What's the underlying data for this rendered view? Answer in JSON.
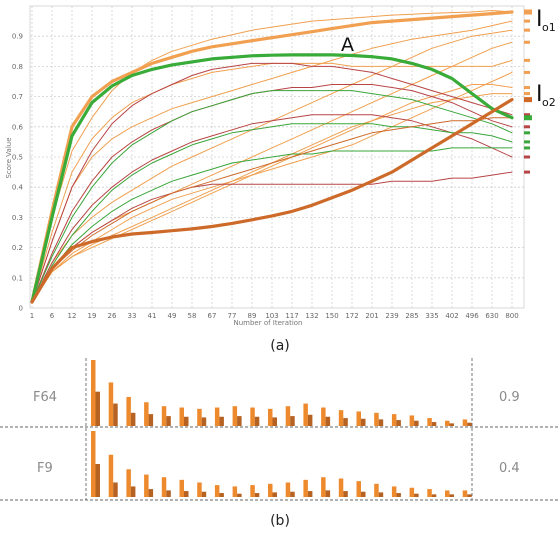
{
  "chart_data": [
    {
      "type": "line",
      "ylabel": "Score Value",
      "xlabel": "Number of Iteration",
      "ylim": [
        0,
        1.0
      ],
      "yticks": [
        "0",
        "0.1",
        "0.2",
        "0.3",
        "0.4",
        "0.5",
        "0.6",
        "0.7",
        "0.8",
        "0.9"
      ],
      "categories": [
        "1",
        "6",
        "12",
        "19",
        "26",
        "33",
        "41",
        "49",
        "58",
        "67",
        "77",
        "89",
        "103",
        "117",
        "132",
        "150",
        "172",
        "201",
        "239",
        "285",
        "335",
        "402",
        "496",
        "630",
        "800"
      ],
      "grid": true,
      "colors": {
        "orange": "#f0a050",
        "dark_orange": "#cd6a2a",
        "green": "#3aa53a",
        "red": "#b84545",
        "bold_orange": "#f0a050",
        "bold_green": "#38ab38"
      },
      "annotations": {
        "A": "A",
        "io1_main": "I",
        "io1_sub": "o1",
        "io2_main": "I",
        "io2_sub": "o2",
        "panel_caption": "(a)"
      },
      "series": [
        {
          "color": "orange",
          "width": 1,
          "values": [
            0.02,
            0.3,
            0.52,
            0.63,
            0.72,
            0.78,
            0.82,
            0.85,
            0.87,
            0.89,
            0.905,
            0.92,
            0.93,
            0.94,
            0.95,
            0.955,
            0.96,
            0.965,
            0.97,
            0.973,
            0.976,
            0.978,
            0.98,
            0.985,
            0.98
          ]
        },
        {
          "color": "orange",
          "width": 1,
          "values": [
            0.02,
            0.22,
            0.4,
            0.5,
            0.56,
            0.6,
            0.63,
            0.66,
            0.68,
            0.7,
            0.72,
            0.74,
            0.76,
            0.78,
            0.8,
            0.82,
            0.84,
            0.86,
            0.875,
            0.89,
            0.9,
            0.91,
            0.92,
            0.935,
            0.95
          ]
        },
        {
          "color": "orange",
          "width": 1,
          "values": [
            0.02,
            0.15,
            0.24,
            0.3,
            0.35,
            0.39,
            0.43,
            0.47,
            0.5,
            0.53,
            0.56,
            0.59,
            0.62,
            0.65,
            0.68,
            0.71,
            0.74,
            0.77,
            0.8,
            0.83,
            0.86,
            0.88,
            0.9,
            0.91,
            0.92
          ]
        },
        {
          "color": "orange",
          "width": 1,
          "values": [
            0.02,
            0.13,
            0.2,
            0.25,
            0.29,
            0.32,
            0.35,
            0.38,
            0.41,
            0.44,
            0.47,
            0.5,
            0.53,
            0.56,
            0.59,
            0.62,
            0.65,
            0.68,
            0.71,
            0.74,
            0.77,
            0.8,
            0.83,
            0.86,
            0.88
          ]
        },
        {
          "color": "orange",
          "width": 1,
          "values": [
            0.02,
            0.12,
            0.18,
            0.22,
            0.26,
            0.3,
            0.33,
            0.36,
            0.38,
            0.4,
            0.42,
            0.44,
            0.46,
            0.48,
            0.5,
            0.52,
            0.54,
            0.57,
            0.6,
            0.63,
            0.66,
            0.69,
            0.72,
            0.75,
            0.78
          ]
        },
        {
          "color": "orange",
          "width": 1,
          "values": [
            0.02,
            0.12,
            0.17,
            0.2,
            0.23,
            0.26,
            0.29,
            0.32,
            0.35,
            0.38,
            0.41,
            0.44,
            0.47,
            0.5,
            0.53,
            0.56,
            0.59,
            0.62,
            0.65,
            0.68,
            0.7,
            0.72,
            0.74,
            0.74,
            0.73
          ]
        },
        {
          "color": "orange",
          "width": 1,
          "values": [
            0.02,
            0.12,
            0.17,
            0.21,
            0.24,
            0.27,
            0.3,
            0.33,
            0.36,
            0.39,
            0.42,
            0.45,
            0.48,
            0.51,
            0.54,
            0.57,
            0.6,
            0.62,
            0.64,
            0.66,
            0.68,
            0.69,
            0.7,
            0.71,
            0.71
          ]
        },
        {
          "color": "orange",
          "width": 1,
          "values": [
            0.02,
            0.25,
            0.45,
            0.56,
            0.63,
            0.68,
            0.71,
            0.74,
            0.76,
            0.78,
            0.79,
            0.8,
            0.81,
            0.81,
            0.81,
            0.81,
            0.8,
            0.8,
            0.8,
            0.8,
            0.8,
            0.8,
            0.8,
            0.8,
            0.82
          ]
        },
        {
          "color": "red",
          "width": 1,
          "values": [
            0.02,
            0.22,
            0.4,
            0.52,
            0.61,
            0.67,
            0.71,
            0.74,
            0.77,
            0.79,
            0.8,
            0.81,
            0.81,
            0.81,
            0.8,
            0.8,
            0.79,
            0.78,
            0.76,
            0.74,
            0.72,
            0.7,
            0.68,
            0.66,
            0.64
          ]
        },
        {
          "color": "red",
          "width": 1,
          "values": [
            0.02,
            0.18,
            0.32,
            0.42,
            0.5,
            0.55,
            0.59,
            0.62,
            0.65,
            0.67,
            0.69,
            0.71,
            0.72,
            0.73,
            0.73,
            0.74,
            0.74,
            0.74,
            0.73,
            0.72,
            0.7,
            0.68,
            0.65,
            0.62,
            0.6
          ]
        },
        {
          "color": "red",
          "width": 1,
          "values": [
            0.02,
            0.15,
            0.26,
            0.34,
            0.4,
            0.45,
            0.49,
            0.52,
            0.55,
            0.57,
            0.59,
            0.61,
            0.62,
            0.63,
            0.64,
            0.64,
            0.64,
            0.64,
            0.63,
            0.62,
            0.6,
            0.58,
            0.56,
            0.53,
            0.5
          ]
        },
        {
          "color": "red",
          "width": 1,
          "values": [
            0.02,
            0.13,
            0.2,
            0.25,
            0.29,
            0.33,
            0.36,
            0.38,
            0.4,
            0.41,
            0.41,
            0.41,
            0.41,
            0.41,
            0.41,
            0.41,
            0.41,
            0.41,
            0.42,
            0.42,
            0.42,
            0.43,
            0.43,
            0.44,
            0.45
          ]
        },
        {
          "color": "green",
          "width": 1,
          "values": [
            0.02,
            0.17,
            0.3,
            0.4,
            0.48,
            0.54,
            0.58,
            0.62,
            0.65,
            0.67,
            0.69,
            0.71,
            0.72,
            0.72,
            0.72,
            0.72,
            0.72,
            0.71,
            0.7,
            0.69,
            0.67,
            0.65,
            0.63,
            0.61,
            0.58
          ]
        },
        {
          "color": "green",
          "width": 1,
          "values": [
            0.02,
            0.14,
            0.24,
            0.32,
            0.39,
            0.44,
            0.48,
            0.51,
            0.54,
            0.56,
            0.58,
            0.59,
            0.6,
            0.61,
            0.61,
            0.61,
            0.61,
            0.61,
            0.6,
            0.6,
            0.59,
            0.58,
            0.58,
            0.57,
            0.55
          ]
        },
        {
          "color": "green",
          "width": 1,
          "values": [
            0.02,
            0.13,
            0.21,
            0.27,
            0.32,
            0.36,
            0.39,
            0.42,
            0.44,
            0.46,
            0.48,
            0.49,
            0.5,
            0.51,
            0.51,
            0.52,
            0.52,
            0.52,
            0.52,
            0.52,
            0.52,
            0.53,
            0.53,
            0.53,
            0.53
          ]
        },
        {
          "color": "dark_orange",
          "width": 1,
          "values": [
            0.02,
            0.13,
            0.19,
            0.24,
            0.28,
            0.32,
            0.35,
            0.38,
            0.4,
            0.42,
            0.44,
            0.46,
            0.48,
            0.5,
            0.52,
            0.54,
            0.56,
            0.58,
            0.59,
            0.6,
            0.61,
            0.62,
            0.62,
            0.63,
            0.63
          ]
        },
        {
          "color": "bold_orange",
          "width": 3.2,
          "values": [
            0.02,
            0.32,
            0.6,
            0.7,
            0.75,
            0.78,
            0.81,
            0.83,
            0.85,
            0.865,
            0.875,
            0.885,
            0.895,
            0.905,
            0.915,
            0.925,
            0.935,
            0.945,
            0.95,
            0.955,
            0.96,
            0.965,
            0.97,
            0.975,
            0.98
          ]
        },
        {
          "color": "bold_green",
          "width": 3.2,
          "values": [
            0.02,
            0.3,
            0.57,
            0.68,
            0.735,
            0.77,
            0.79,
            0.805,
            0.815,
            0.825,
            0.83,
            0.835,
            0.837,
            0.838,
            0.838,
            0.838,
            0.836,
            0.832,
            0.825,
            0.81,
            0.79,
            0.76,
            0.71,
            0.66,
            0.63
          ]
        },
        {
          "color": "dark_orange",
          "width": 3.2,
          "values": [
            0.02,
            0.13,
            0.2,
            0.22,
            0.235,
            0.245,
            0.25,
            0.256,
            0.262,
            0.27,
            0.28,
            0.292,
            0.305,
            0.32,
            0.34,
            0.365,
            0.39,
            0.42,
            0.45,
            0.49,
            0.53,
            0.57,
            0.61,
            0.65,
            0.69
          ]
        }
      ]
    },
    {
      "type": "bar",
      "panel_caption": "(b)",
      "rows": [
        {
          "label": "F64",
          "value_label": "0.9",
          "groups": [
            [
              1.0,
              0.52
            ],
            [
              0.66,
              0.34
            ],
            [
              0.44,
              0.2
            ],
            [
              0.36,
              0.18
            ],
            [
              0.3,
              0.15
            ],
            [
              0.28,
              0.14
            ],
            [
              0.26,
              0.13
            ],
            [
              0.28,
              0.14
            ],
            [
              0.3,
              0.15
            ],
            [
              0.28,
              0.14
            ],
            [
              0.26,
              0.13
            ],
            [
              0.3,
              0.15
            ],
            [
              0.34,
              0.17
            ],
            [
              0.28,
              0.14
            ],
            [
              0.24,
              0.12
            ],
            [
              0.22,
              0.11
            ],
            [
              0.2,
              0.1
            ],
            [
              0.18,
              0.09
            ],
            [
              0.16,
              0.08
            ],
            [
              0.12,
              0.06
            ],
            [
              0.08,
              0.04
            ],
            [
              0.1,
              0.05
            ]
          ]
        },
        {
          "label": "F9",
          "value_label": "0.4",
          "groups": [
            [
              1.0,
              0.5
            ],
            [
              0.64,
              0.22
            ],
            [
              0.42,
              0.16
            ],
            [
              0.34,
              0.12
            ],
            [
              0.3,
              0.1
            ],
            [
              0.26,
              0.09
            ],
            [
              0.22,
              0.08
            ],
            [
              0.18,
              0.06
            ],
            [
              0.16,
              0.05
            ],
            [
              0.18,
              0.06
            ],
            [
              0.2,
              0.07
            ],
            [
              0.22,
              0.08
            ],
            [
              0.26,
              0.09
            ],
            [
              0.3,
              0.1
            ],
            [
              0.28,
              0.09
            ],
            [
              0.24,
              0.08
            ],
            [
              0.2,
              0.07
            ],
            [
              0.16,
              0.06
            ],
            [
              0.14,
              0.05
            ],
            [
              0.12,
              0.04
            ],
            [
              0.1,
              0.04
            ],
            [
              0.1,
              0.04
            ]
          ]
        }
      ],
      "colors": {
        "bar_main": "#ee8a2e",
        "bar_dark": "#b56222"
      }
    }
  ]
}
